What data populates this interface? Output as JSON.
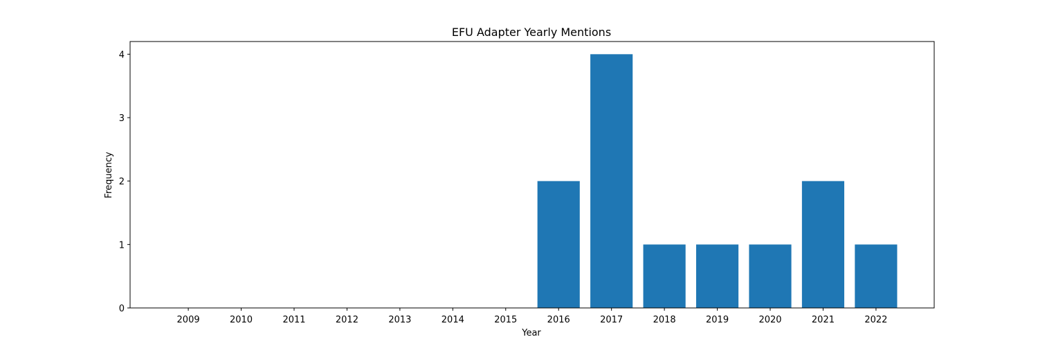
{
  "chart_data": {
    "type": "bar",
    "title": "EFU Adapter Yearly Mentions",
    "xlabel": "Year",
    "ylabel": "Frequency",
    "categories": [
      2009,
      2010,
      2011,
      2012,
      2013,
      2014,
      2015,
      2016,
      2017,
      2018,
      2019,
      2020,
      2021,
      2022
    ],
    "values": [
      0,
      0,
      0,
      0,
      0,
      0,
      0,
      2,
      4,
      1,
      1,
      1,
      2,
      1
    ],
    "yticks": [
      0,
      1,
      2,
      3,
      4
    ],
    "ylim": [
      0,
      4.2
    ],
    "xlim": [
      2007.9,
      2023.1
    ],
    "grid": false,
    "bar_color": "#1f77b4"
  }
}
